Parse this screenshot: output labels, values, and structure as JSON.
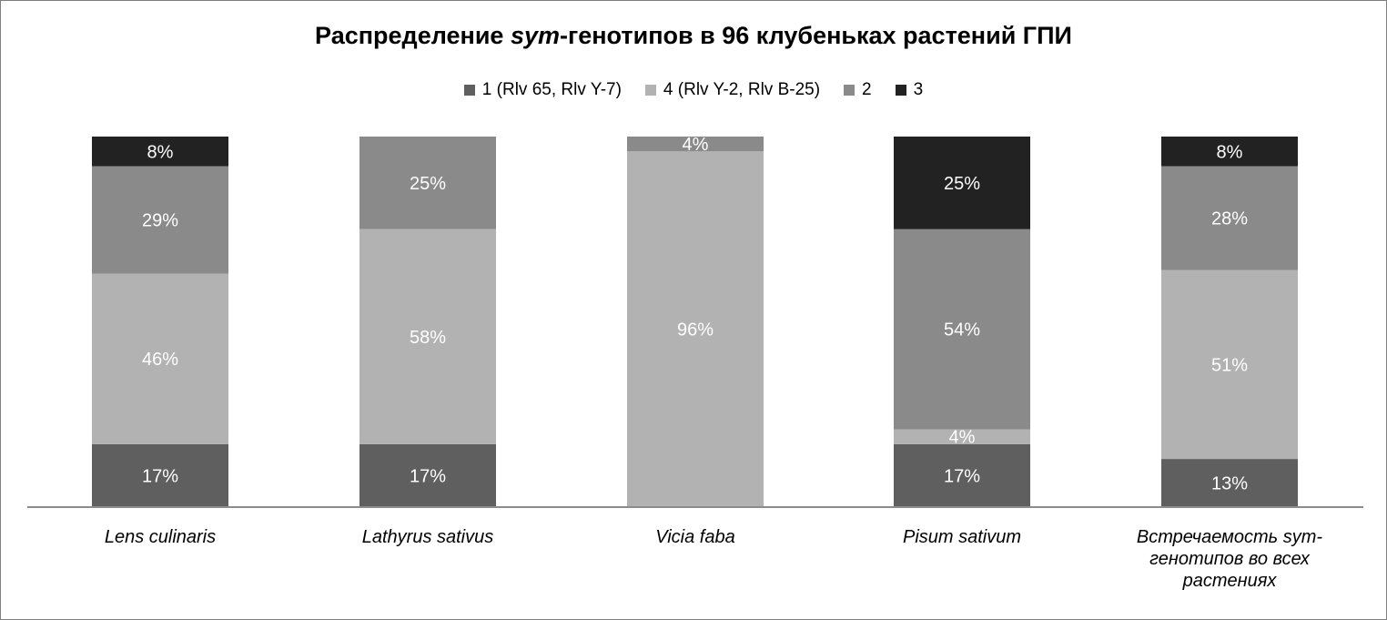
{
  "title": {
    "prefix": "Распределение ",
    "italic": "sym",
    "suffix": "-генотипов в 96 клубеньках растений ГПИ"
  },
  "chart_data": {
    "type": "bar",
    "stacked": true,
    "percent": true,
    "categories": [
      "Lens culinaris",
      "Lathyrus sativus",
      "Vicia faba",
      "Pisum sativum",
      "Встречаемость sym-генотипов во всех растениях"
    ],
    "series": [
      {
        "name": "1 (Rlv 65, Rlv Y-7)",
        "color": "#5f5f5f",
        "values": [
          17,
          17,
          0,
          17,
          13
        ],
        "labels": [
          "17%",
          "17%",
          "",
          "17%",
          "13%"
        ],
        "label_color": "#ffffff"
      },
      {
        "name": "4 (Rlv Y-2, Rlv B-25)",
        "color": "#b2b2b2",
        "values": [
          46,
          58,
          96,
          4,
          51
        ],
        "labels": [
          "46%",
          "58%",
          "96%",
          "4%",
          "51%"
        ],
        "label_color": "#ffffff"
      },
      {
        "name": "2",
        "color": "#8a8a8a",
        "values": [
          29,
          25,
          4,
          54,
          28
        ],
        "labels": [
          "29%",
          "25%",
          "4%",
          "54%",
          "28%"
        ],
        "label_color": "#ffffff"
      },
      {
        "name": "3",
        "color": "#222222",
        "values": [
          8,
          0,
          0,
          25,
          8
        ],
        "labels": [
          "8%",
          "",
          "",
          "25%",
          "8%"
        ],
        "label_color": "#ffffff"
      }
    ],
    "ylim": [
      0,
      100
    ],
    "grid": false,
    "legend_position": "top"
  }
}
